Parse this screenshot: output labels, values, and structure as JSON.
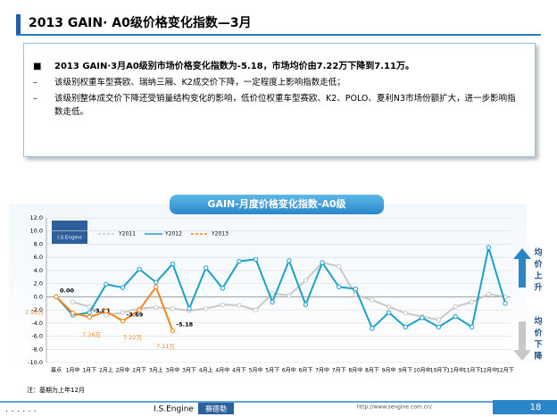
{
  "slide_title": "2013 GAIN· A0级价格变化指数—3月",
  "bullets": [
    {
      "marker": "■",
      "text": "2013 GAIN·3月A0级别市场价格变化指数为-5.18，市场均价由7.22万下降到7.11万。"
    },
    {
      "marker": "–",
      "text": "该级别权重车型赛欧、瑞纳三厢、K2成交价下降，一定程度上影响指数走低；"
    },
    {
      "marker": "–",
      "text": "该级别整体成交价下降还受销量结构变化的影响，低价位权重车型赛欧、K2、POLO、夏利N3市场份额扩大，进一步影响指数走低。"
    }
  ],
  "chart_data": {
    "type": "line",
    "title": "GAIN-月度价格变化指数-A0级",
    "logo": "I.S.Engine",
    "categories": [
      "基点",
      "1月中",
      "1月下",
      "2月上",
      "2月中",
      "2月下",
      "3月上",
      "3月中",
      "3月下",
      "4月上",
      "4月中",
      "4月下",
      "5月中",
      "5月下",
      "6月中",
      "6月下",
      "7月中",
      "7月下",
      "8月中",
      "8月下",
      "9月中",
      "9月下",
      "10月中",
      "10月下",
      "11月中",
      "11月下",
      "12月中",
      "12月下"
    ],
    "series": [
      {
        "name": "Y2011",
        "color": "#c8c8c8",
        "values": [
          null,
          -0.8,
          -1.5,
          -2.8,
          -2.4,
          -1.8,
          -1.6,
          -1.8,
          -2.1,
          -1.8,
          -1.2,
          -1.3,
          -2.0,
          0.5,
          0.2,
          2.5,
          5.2,
          4.6,
          0.3,
          -0.5,
          -1.5,
          -2.5,
          -3.0,
          -3.5,
          -1.5,
          -0.8,
          0.4,
          0.0
        ]
      },
      {
        "name": "Y2012",
        "color": "#1ba1c9",
        "values": [
          0.0,
          -2.8,
          -2.4,
          1.9,
          1.4,
          4.2,
          2.2,
          5.0,
          -1.8,
          4.4,
          1.3,
          5.4,
          5.7,
          -0.8,
          5.5,
          -1.2,
          5.2,
          1.5,
          1.2,
          -4.8,
          -2.4,
          -4.6,
          -3.2,
          -4.6,
          -3.0,
          -4.6,
          7.5,
          -1.0
        ]
      },
      {
        "name": "Y2013",
        "color": "#f5841f",
        "values": [
          0.0,
          -2.5,
          -3.08,
          -2.2,
          -3.69,
          -2.0,
          1.5,
          -5.18,
          null,
          null,
          null,
          null,
          null,
          null,
          null,
          null,
          null,
          null,
          null,
          null,
          null,
          null,
          null,
          null,
          null,
          null,
          null,
          null
        ],
        "value_labels": [
          "0.00",
          null,
          "-3.08",
          null,
          "-3.69",
          null,
          null,
          "-5.18",
          null,
          null,
          null,
          null,
          null,
          null,
          null,
          null,
          null,
          null,
          null,
          null,
          null,
          null,
          null,
          null,
          null,
          null,
          null,
          null
        ]
      }
    ],
    "ylim": [
      -10,
      12
    ],
    "yticks": [
      {
        "value": 12,
        "label": "12.0"
      },
      {
        "value": 10,
        "label": "10.0"
      },
      {
        "value": 8,
        "label": "8.0"
      },
      {
        "value": 6,
        "label": "6.0"
      },
      {
        "value": 4,
        "label": "4.0"
      },
      {
        "value": 2,
        "label": "2.0"
      },
      {
        "value": 0,
        "label": "0.0"
      },
      {
        "value": -2,
        "label": "-2.0"
      },
      {
        "value": -4,
        "label": "-4.0"
      },
      {
        "value": -6,
        "label": "-6.0"
      },
      {
        "value": -8,
        "label": "-8.0"
      },
      {
        "value": -10,
        "label": "-10.0"
      }
    ],
    "grid": true,
    "annotations": [
      "7.50万",
      "7.26万",
      "7.22万",
      "7.11万"
    ],
    "note": "注：基期为上年12月"
  },
  "side_labels": {
    "up": "均价上升",
    "down": "均价下降"
  },
  "footer": {
    "brand": "I.S.Engine",
    "brand_cn": "赛德勒",
    "url": "http://www.sengine.com.cn/",
    "page": "18"
  }
}
